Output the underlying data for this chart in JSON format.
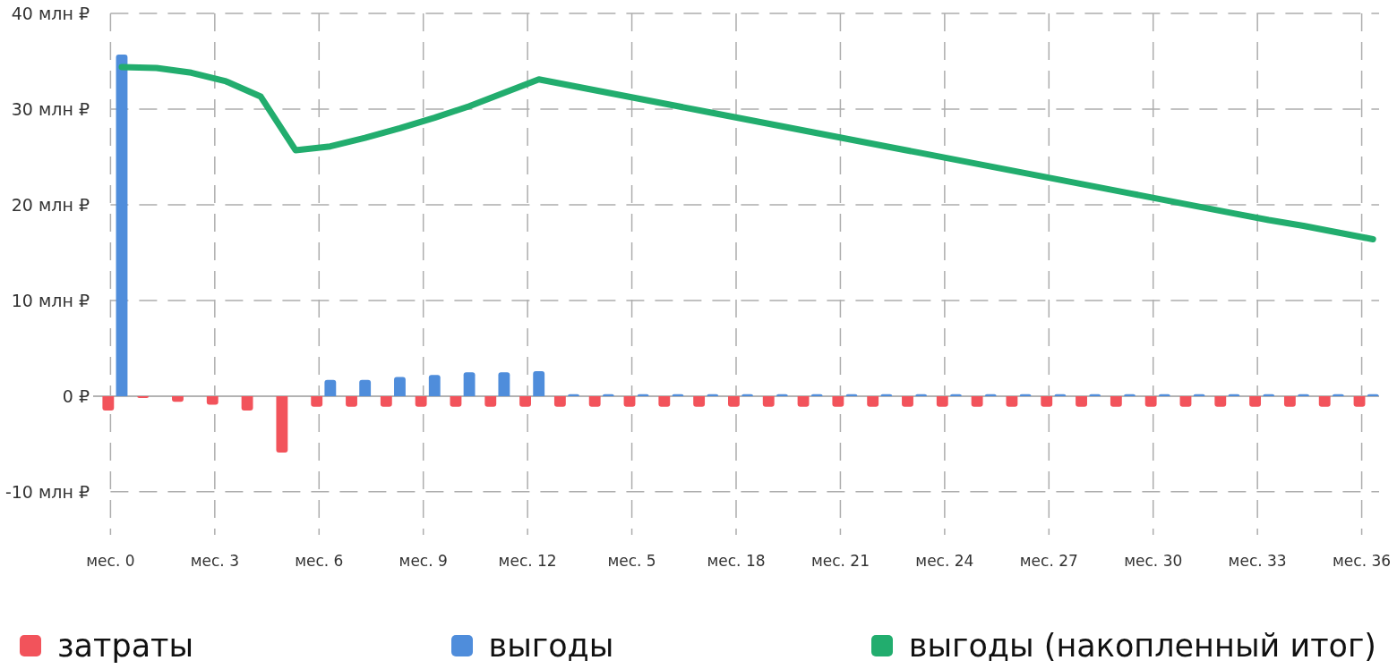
{
  "chart_data": {
    "type": "bar",
    "categories": [
      "мес. 0",
      null,
      null,
      "мес. 3",
      null,
      null,
      "мес. 6",
      null,
      null,
      "мес. 9",
      null,
      null,
      "мес. 12",
      null,
      null,
      "мес. 5",
      null,
      null,
      "мес. 18",
      null,
      null,
      "мес. 21",
      null,
      null,
      "мес. 24",
      null,
      null,
      "мес. 27",
      null,
      null,
      "мес. 30",
      null,
      null,
      "мес. 33",
      null,
      null,
      "мес. 36"
    ],
    "series": [
      {
        "name": "затраты",
        "color": "#f2535b",
        "values": [
          -1.5,
          -0.2,
          -0.6,
          -0.9,
          -1.5,
          -5.9,
          -1.1,
          -1.1,
          -1.1,
          -1.1,
          -1.1,
          -1.1,
          -1.1,
          -1.1,
          -1.1,
          -1.1,
          -1.1,
          -1.1,
          -1.1,
          -1.1,
          -1.1,
          -1.1,
          -1.1,
          -1.1,
          -1.1,
          -1.1,
          -1.1,
          -1.1,
          -1.1,
          -1.1,
          -1.1,
          -1.1,
          -1.1,
          -1.1,
          -1.1,
          -1.1,
          -1.1
        ]
      },
      {
        "name": "выгоды",
        "color": "#4f8ddb",
        "values": [
          35.7,
          null,
          null,
          null,
          null,
          null,
          1.7,
          1.7,
          2.0,
          2.2,
          2.5,
          2.5,
          2.6,
          0.2,
          0.2,
          0.2,
          0.2,
          0.2,
          0.2,
          0.2,
          0.2,
          0.2,
          0.2,
          0.2,
          0.2,
          0.2,
          0.2,
          0.2,
          0.2,
          0.2,
          0.2,
          0.2,
          0.2,
          0.2,
          0.2,
          0.2,
          0.2
        ]
      },
      {
        "name": "выгоды (накопленный итог)",
        "type": "line",
        "color": "#22ad6e",
        "values": [
          34.4,
          34.3,
          33.8,
          32.9,
          31.3,
          25.7,
          26.1,
          27.0,
          28.0,
          29.1,
          30.3,
          31.7,
          33.1,
          32.4,
          31.7,
          31.0,
          30.3,
          29.6,
          28.9,
          28.2,
          27.5,
          26.8,
          26.1,
          25.4,
          24.7,
          24.0,
          23.3,
          22.6,
          21.9,
          21.2,
          20.5,
          19.8,
          19.1,
          18.4,
          17.8,
          17.1,
          16.4
        ]
      }
    ],
    "ylim": [
      -14.5,
      40
    ],
    "yticks": [
      {
        "value": -10,
        "label": "-10 млн ₽"
      },
      {
        "value": 0,
        "label": "0 ₽"
      },
      {
        "value": 10,
        "label": "10 млн ₽"
      },
      {
        "value": 20,
        "label": "20 млн ₽"
      },
      {
        "value": 30,
        "label": "30 млн ₽"
      },
      {
        "value": 40,
        "label": "40 млн ₽"
      }
    ],
    "grid": true,
    "legend": "bottom"
  }
}
